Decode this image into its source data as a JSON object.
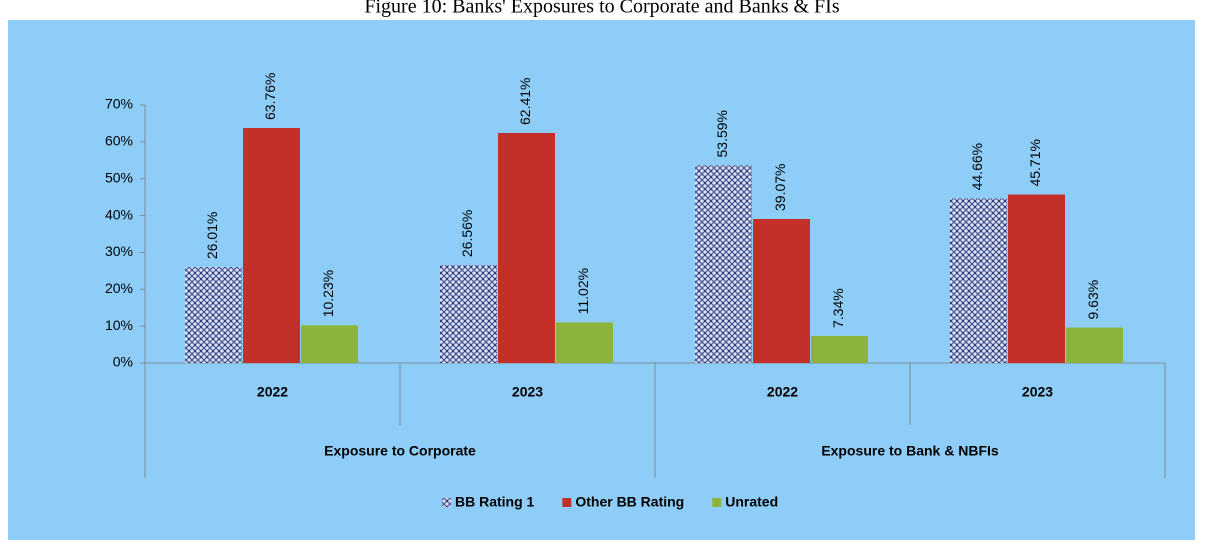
{
  "chart_data": {
    "type": "bar",
    "title": "Figure 10: Banks' Exposures to Corporate and Banks & FIs",
    "categories": [
      "2022",
      "2023",
      "2022",
      "2023"
    ],
    "groups": [
      "Exposure to Corporate",
      "Exposure to Bank & NBFIs"
    ],
    "series": [
      {
        "name": "BB Rating 1",
        "color": "#5a6aa8",
        "pattern": "hatched",
        "values": [
          26.01,
          26.56,
          53.59,
          44.66
        ],
        "value_labels": [
          "26.01%",
          "26.56%",
          "53.59%",
          "44.66%"
        ]
      },
      {
        "name": "Other BB Rating",
        "color": "#c3302a",
        "values": [
          63.76,
          62.41,
          39.07,
          45.71
        ],
        "value_labels": [
          "63.76%",
          "62.41%",
          "39.07%",
          "45.71%"
        ]
      },
      {
        "name": "Unrated",
        "color": "#8cb43c",
        "values": [
          10.23,
          11.02,
          7.34,
          9.63
        ],
        "value_labels": [
          "10.23%",
          "11.02%",
          "7.34%",
          "9.63%"
        ]
      }
    ],
    "ylim": [
      0,
      70
    ],
    "yticks": [
      {
        "value": 0,
        "label": "0%"
      },
      {
        "value": 10,
        "label": "10%"
      },
      {
        "value": 20,
        "label": "20%"
      },
      {
        "value": 30,
        "label": "30%"
      },
      {
        "value": 40,
        "label": "40%"
      },
      {
        "value": 50,
        "label": "50%"
      },
      {
        "value": 60,
        "label": "60%"
      },
      {
        "value": 70,
        "label": "70%"
      }
    ],
    "legend": "bottom"
  }
}
